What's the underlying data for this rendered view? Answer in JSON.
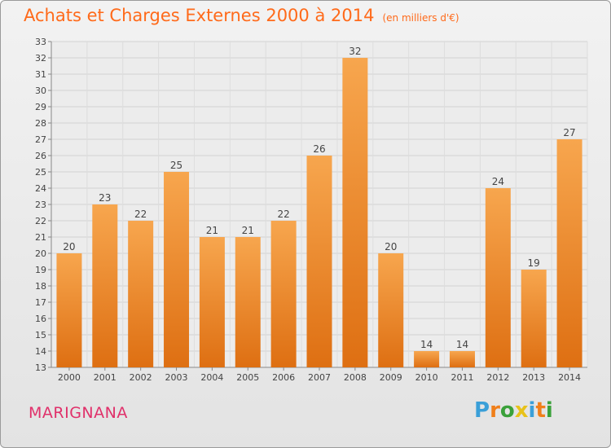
{
  "title": "Achats et Charges Externes 2000 à 2014",
  "subtitle": "(en milliers d'€)",
  "commune": "MARIGNANA",
  "brand": {
    "letters": [
      "P",
      "r",
      "o",
      "x",
      "i",
      "t",
      "i"
    ],
    "colors": [
      "#3a9fd8",
      "#f07f1a",
      "#3aa13a",
      "#e8c21a",
      "#3a9fd8",
      "#f07f1a",
      "#3aa13a"
    ]
  },
  "colors": {
    "bar_top": "#f7a64e",
    "bar_bottom": "#de6f12",
    "title": "#ff6a1a",
    "commune": "#e0306a"
  },
  "chart_data": {
    "type": "bar",
    "categories": [
      "2000",
      "2001",
      "2002",
      "2003",
      "2004",
      "2005",
      "2006",
      "2007",
      "2008",
      "2009",
      "2010",
      "2011",
      "2012",
      "2013",
      "2014"
    ],
    "values": [
      20,
      23,
      22,
      25,
      21,
      21,
      22,
      26,
      32,
      20,
      14,
      14,
      24,
      19,
      27
    ],
    "title": "Achats et Charges Externes 2000 à 2014",
    "ylim": [
      13,
      33
    ],
    "yticks": [
      13,
      14,
      15,
      16,
      17,
      18,
      19,
      20,
      21,
      22,
      23,
      24,
      25,
      26,
      27,
      28,
      29,
      30,
      31,
      32,
      33
    ],
    "grid": true
  }
}
